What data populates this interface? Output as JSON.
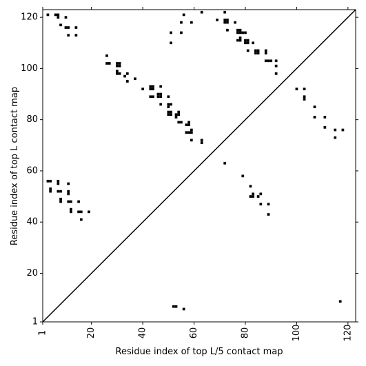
{
  "chart_data": {
    "type": "heatmap",
    "title": "",
    "xlabel": "Residue index of top L/5 contact map",
    "ylabel": "Residue index of top L contact map",
    "xlim": [
      1,
      123
    ],
    "ylim": [
      1,
      123
    ],
    "x_ticks": [
      1,
      20,
      40,
      60,
      80,
      100,
      120
    ],
    "x_tick_labels": [
      "1",
      "20",
      "40",
      "60",
      "80",
      "100",
      "120"
    ],
    "y_ticks": [
      1,
      20,
      40,
      60,
      80,
      100,
      120
    ],
    "y_tick_labels": [
      "1",
      "20",
      "40",
      "60",
      "80",
      "100",
      "120"
    ],
    "diagonal": true,
    "contacts_color": "#000000",
    "upper_contacts": [
      [
        3,
        121
      ],
      [
        6,
        121
      ],
      [
        7,
        121
      ],
      [
        7,
        120
      ],
      [
        10,
        120
      ],
      [
        8,
        117
      ],
      [
        10,
        116
      ],
      [
        11,
        116
      ],
      [
        11,
        113
      ],
      [
        14,
        116
      ],
      [
        14,
        113
      ],
      [
        26,
        105
      ],
      [
        26,
        102
      ],
      [
        27,
        102
      ],
      [
        30,
        102
      ],
      [
        31,
        102
      ],
      [
        30,
        101
      ],
      [
        31,
        101
      ],
      [
        30,
        99
      ],
      [
        30,
        98
      ],
      [
        31,
        98
      ],
      [
        33,
        97
      ],
      [
        34,
        98
      ],
      [
        34,
        95
      ],
      [
        37,
        96
      ],
      [
        40,
        92
      ],
      [
        43,
        93
      ],
      [
        44,
        93
      ],
      [
        43,
        92
      ],
      [
        44,
        92
      ],
      [
        47,
        93
      ],
      [
        43,
        89
      ],
      [
        44,
        89
      ],
      [
        46,
        89
      ],
      [
        47,
        89
      ],
      [
        46,
        90
      ],
      [
        47,
        90
      ],
      [
        47,
        86
      ],
      [
        50,
        89
      ],
      [
        50,
        86
      ],
      [
        51,
        86
      ],
      [
        50,
        85
      ],
      [
        50,
        83
      ],
      [
        51,
        83
      ],
      [
        50,
        82
      ],
      [
        51,
        82
      ],
      [
        53,
        82
      ],
      [
        54,
        82
      ],
      [
        54,
        83
      ],
      [
        53,
        81
      ],
      [
        54,
        79
      ],
      [
        55,
        79
      ],
      [
        51,
        114
      ],
      [
        51,
        110
      ],
      [
        55,
        114
      ],
      [
        55,
        118
      ],
      [
        56,
        121
      ],
      [
        59,
        118
      ],
      [
        63,
        122
      ],
      [
        57,
        78
      ],
      [
        58,
        78
      ],
      [
        58,
        79
      ],
      [
        57,
        75
      ],
      [
        58,
        75
      ],
      [
        59,
        75
      ],
      [
        59,
        76
      ],
      [
        59,
        72
      ],
      [
        63,
        72
      ],
      [
        63,
        71
      ],
      [
        69,
        119
      ],
      [
        72,
        122
      ],
      [
        72,
        119
      ],
      [
        73,
        119
      ],
      [
        72,
        118
      ],
      [
        73,
        118
      ],
      [
        73,
        115
      ],
      [
        76,
        118
      ],
      [
        77,
        115
      ],
      [
        78,
        115
      ],
      [
        77,
        114
      ],
      [
        78,
        114
      ],
      [
        77,
        111
      ],
      [
        78,
        111
      ],
      [
        78,
        112
      ],
      [
        79,
        114
      ],
      [
        80,
        114
      ],
      [
        80,
        111
      ],
      [
        81,
        111
      ],
      [
        80,
        110
      ],
      [
        81,
        110
      ],
      [
        81,
        107
      ],
      [
        83,
        110
      ],
      [
        84,
        107
      ],
      [
        85,
        107
      ],
      [
        84,
        106
      ],
      [
        85,
        106
      ],
      [
        88,
        107
      ],
      [
        88,
        106
      ],
      [
        88,
        103
      ],
      [
        89,
        103
      ],
      [
        90,
        103
      ],
      [
        92,
        103
      ],
      [
        92,
        101
      ],
      [
        92,
        98
      ],
      [
        100,
        92
      ],
      [
        103,
        92
      ],
      [
        103,
        89
      ],
      [
        103,
        88
      ],
      [
        107,
        85
      ],
      [
        107,
        81
      ],
      [
        111,
        81
      ],
      [
        111,
        77
      ],
      [
        115,
        76
      ],
      [
        115,
        73
      ],
      [
        118,
        76
      ]
    ],
    "lower_contacts": [
      [
        3,
        56
      ],
      [
        4,
        56
      ],
      [
        4,
        53
      ],
      [
        4,
        52
      ],
      [
        7,
        56
      ],
      [
        7,
        55
      ],
      [
        7,
        52
      ],
      [
        8,
        52
      ],
      [
        8,
        49
      ],
      [
        8,
        48
      ],
      [
        11,
        55
      ],
      [
        11,
        52
      ],
      [
        11,
        51
      ],
      [
        11,
        48
      ],
      [
        12,
        48
      ],
      [
        12,
        45
      ],
      [
        12,
        44
      ],
      [
        15,
        48
      ],
      [
        15,
        44
      ],
      [
        16,
        44
      ],
      [
        16,
        41
      ],
      [
        19,
        44
      ],
      [
        72,
        63
      ],
      [
        79,
        58
      ],
      [
        82,
        54
      ],
      [
        82,
        50
      ],
      [
        83,
        51
      ],
      [
        83,
        50
      ],
      [
        85,
        50
      ],
      [
        86,
        51
      ],
      [
        86,
        47
      ],
      [
        89,
        47
      ],
      [
        89,
        43
      ],
      [
        52,
        7
      ],
      [
        53,
        7
      ],
      [
        56,
        6
      ],
      [
        117,
        9
      ]
    ]
  }
}
